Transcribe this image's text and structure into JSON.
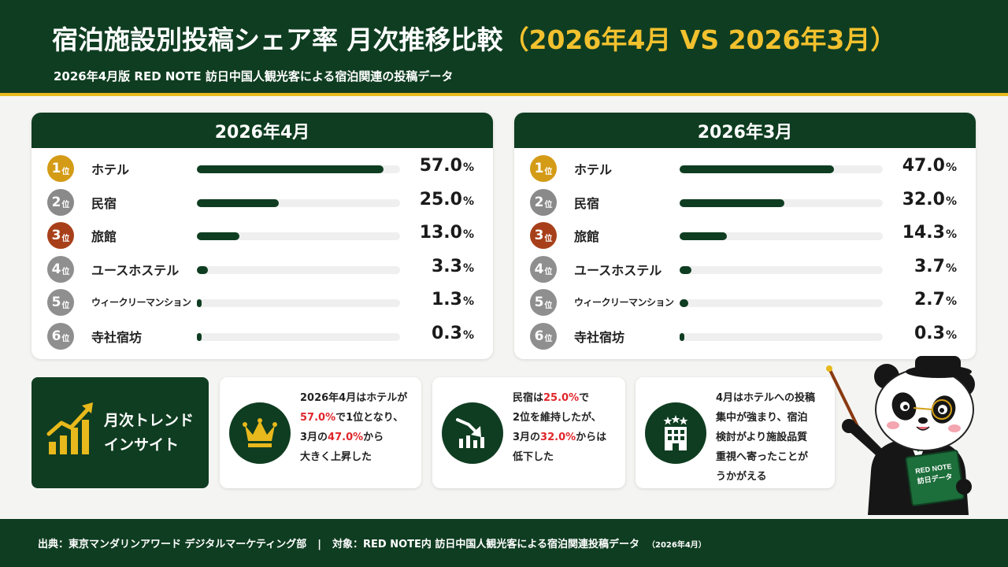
{
  "header": {
    "title_main": "宿泊施設別投稿シェア率 月次推移比較",
    "title_highlight": "（2026年4月 VS 2026年3月）",
    "subtitle": "2026年4月版 RED NOTE 訪日中国人観光客による宿泊関連の投稿データ"
  },
  "chart_data": [
    {
      "type": "bar",
      "title": "2026年4月",
      "unit": "%",
      "xlim": [
        0,
        62
      ],
      "categories": [
        "ホテル",
        "民宿",
        "旅館",
        "ユースホステル",
        "ウィークリーマンション",
        "寺社宿坊"
      ],
      "values": [
        57.0,
        25.0,
        13.0,
        3.3,
        1.3,
        0.3
      ],
      "value_labels": [
        "57.0",
        "25.0",
        "13.0",
        "3.3",
        "1.3",
        "0.3"
      ],
      "rank_labels": [
        "1",
        "2",
        "3",
        "4",
        "5",
        "6"
      ],
      "rank_suffix": "位"
    },
    {
      "type": "bar",
      "title": "2026年3月",
      "unit": "%",
      "xlim": [
        0,
        62
      ],
      "categories": [
        "ホテル",
        "民宿",
        "旅館",
        "ユースホステル",
        "ウィークリーマンション",
        "寺社宿坊"
      ],
      "values": [
        47.0,
        32.0,
        14.3,
        3.7,
        2.7,
        0.3
      ],
      "value_labels": [
        "47.0",
        "32.0",
        "14.3",
        "3.7",
        "2.7",
        "0.3"
      ],
      "rank_labels": [
        "1",
        "2",
        "3",
        "4",
        "5",
        "6"
      ],
      "rank_suffix": "位"
    }
  ],
  "insights": {
    "label_line1": "月次トレンド",
    "label_line2": "インサイト",
    "card1": {
      "icon": "crown-icon",
      "t1": "2026年4月はホテルが",
      "r1": "57.0%",
      "t2": "で1位となり、",
      "t3": "3月の",
      "r2": "47.0%",
      "t4": "から",
      "t5": "大きく上昇した"
    },
    "card2": {
      "icon": "trend-down-icon",
      "t1": "民宿は",
      "r1": "25.0%",
      "t2": "で",
      "t3": "2位を維持したが、",
      "t4": "3月の",
      "r2": "32.0%",
      "t5": "からは",
      "t6": "低下した"
    },
    "card3": {
      "icon": "hotel-building-icon",
      "lines": [
        "4月はホテルへの投稿",
        "集中が強まり、宿泊",
        "検討がより施設品質",
        "重視へ寄ったことが",
        "うかがえる"
      ]
    }
  },
  "mascot": {
    "book_line1": "RED NOTE",
    "book_line2": "訪日データ"
  },
  "footer": {
    "source": "出典：東京マンダリンアワード デジタルマーケティング部",
    "separator": "|",
    "target": "対象：RED NOTE内 訪日中国人観光客による宿泊関連投稿データ",
    "period": "（2026年4月）"
  },
  "colors": {
    "brand_green": "#0f3d21",
    "gold": "#e8b91c",
    "highlight_red": "#e0262b",
    "rank1": "#d49b16",
    "rank2": "#8a8a8a",
    "rank3": "#a7401a"
  }
}
